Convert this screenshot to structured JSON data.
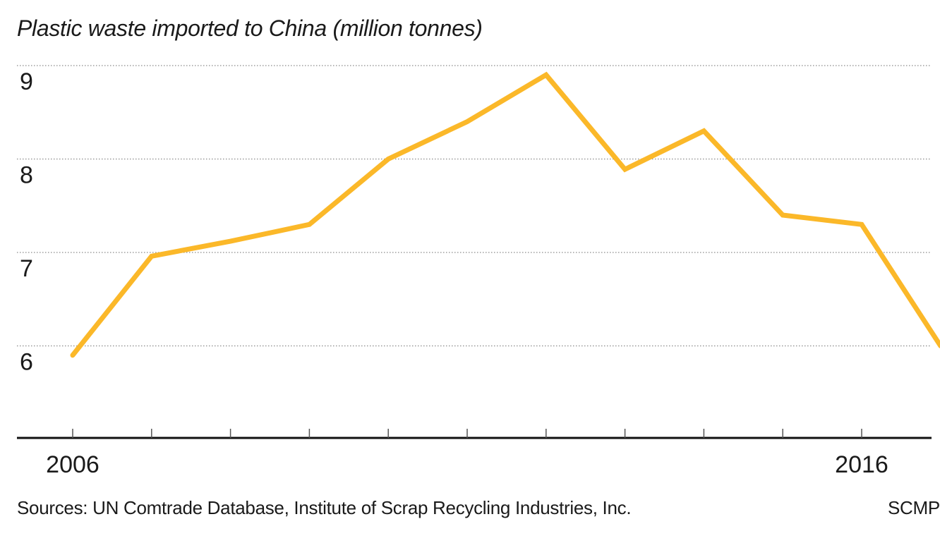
{
  "chart_data": {
    "type": "line",
    "title": "Plastic waste imported to China (million tonnes)",
    "xlabel": "",
    "ylabel": "",
    "x": [
      2006,
      2007,
      2008,
      2009,
      2010,
      2011,
      2012,
      2013,
      2014,
      2015,
      2016,
      2017
    ],
    "x_tick_labels": [
      {
        "x": 2006,
        "label": "2006"
      },
      {
        "x": 2016,
        "label": "2016"
      }
    ],
    "series": [
      {
        "values": [
          5.9,
          6.96,
          7.12,
          7.3,
          8.0,
          8.4,
          8.9,
          7.89,
          8.3,
          7.4,
          7.3,
          6.0
        ]
      }
    ],
    "ylim": [
      5,
      9.1
    ],
    "yticks": [
      6,
      7,
      8,
      9
    ],
    "grid": true,
    "line_color": "#FBB829"
  },
  "source_text": "Sources: UN Comtrade Database, Institute of Scrap Recycling Industries, Inc.",
  "credit_text": "SCMP"
}
